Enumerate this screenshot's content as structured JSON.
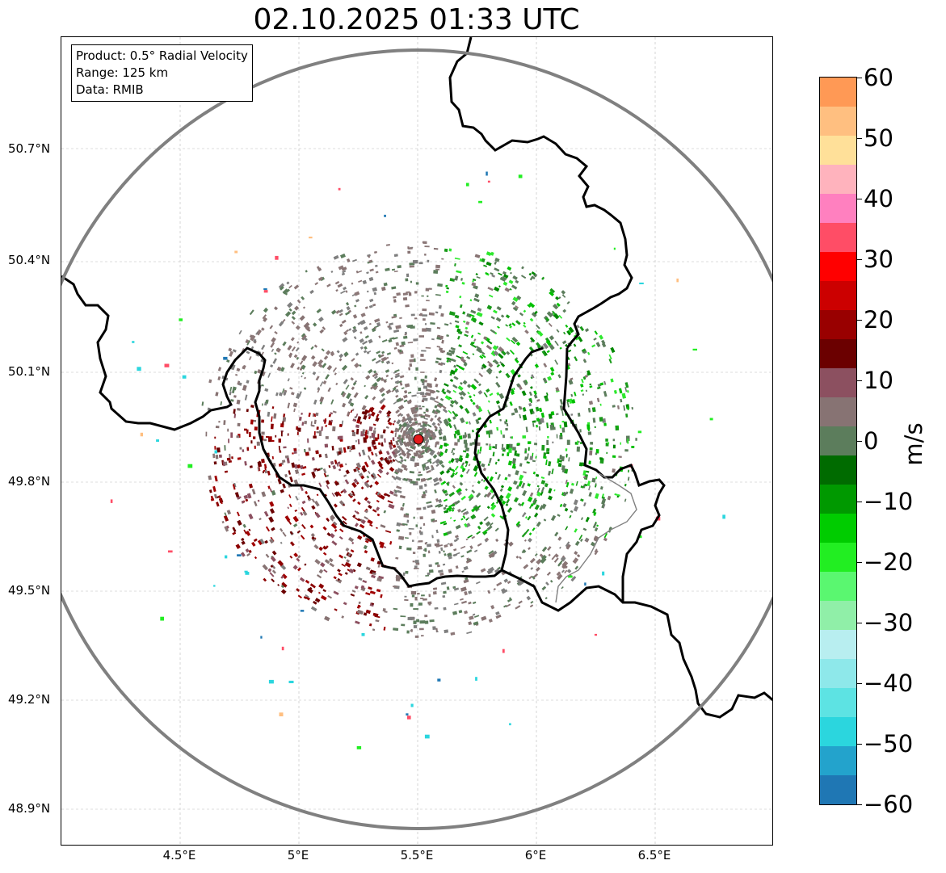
{
  "title": "02.10.2025 01:33 UTC",
  "info_box": {
    "product": "Product: 0.5° Radial Velocity",
    "range": "Range: 125 km",
    "data": "Data: RMIB"
  },
  "lat_labels": [
    "50.7°N",
    "50.4°N",
    "50.1°N",
    "49.8°N",
    "49.5°N",
    "49.2°N",
    "48.9°N"
  ],
  "lon_labels": [
    "4.5°E",
    "5°E",
    "5.5°E",
    "6°E",
    "6.5°E"
  ],
  "colorbar": {
    "unit": "m/s",
    "tick_labels": [
      "60",
      "50",
      "40",
      "30",
      "20",
      "10",
      "0",
      "−10",
      "−20",
      "−30",
      "−40",
      "−50",
      "−60"
    ],
    "stops": [
      "#1f77b4",
      "#23a3cc",
      "#2bd6de",
      "#5de3e3",
      "#8ee8ea",
      "#b8eef0",
      "#90efa8",
      "#5af770",
      "#22ee22",
      "#00cc00",
      "#009900",
      "#006b00",
      "#5c7d5c",
      "#877373",
      "#8c5060",
      "#6b0000",
      "#990000",
      "#cc0000",
      "#ff0000",
      "#ff4d66",
      "#ff80bf",
      "#ffb3bd",
      "#ffe099",
      "#ffbf80",
      "#ff9955"
    ]
  },
  "colors": {
    "range_ring": "#808080",
    "border": "#000000",
    "radar_site": "#e31a1c",
    "grid": "#bbbbbb"
  }
}
